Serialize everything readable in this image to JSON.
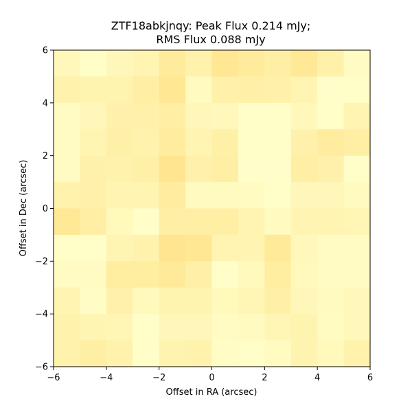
{
  "chart_data": {
    "type": "heatmap",
    "title_lines": [
      "ZTF18abkjnqy: Peak Flux 0.214 mJy;",
      "RMS Flux 0.088 mJy"
    ],
    "xlabel": "Offset in RA (arcsec)",
    "ylabel": "Offset in Dec (arcsec)",
    "xlim": [
      -6,
      6
    ],
    "ylim": [
      -6,
      6
    ],
    "xticks": [
      -6,
      -4,
      -2,
      0,
      2,
      4,
      6
    ],
    "yticks": [
      -6,
      -4,
      -2,
      0,
      2,
      4,
      6
    ],
    "xtick_labels": [
      "−6",
      "−4",
      "−2",
      "0",
      "2",
      "4",
      "6"
    ],
    "ytick_labels": [
      "−6",
      "−4",
      "−2",
      "0",
      "2",
      "4",
      "6"
    ],
    "colormap": [
      "#ffffcc",
      "#ffeda0",
      "#fed976"
    ],
    "grid": false,
    "rows_top_to_bottom": [
      [
        0.2,
        0.05,
        0.22,
        0.3,
        0.55,
        0.35,
        0.65,
        0.55,
        0.45,
        0.62,
        0.4,
        0.1
      ],
      [
        0.35,
        0.32,
        0.32,
        0.45,
        0.65,
        0.15,
        0.4,
        0.42,
        0.4,
        0.3,
        0.02,
        0.05
      ],
      [
        0.1,
        0.22,
        0.38,
        0.4,
        0.47,
        0.22,
        0.2,
        0.05,
        0.05,
        0.2,
        0.05,
        0.3
      ],
      [
        0.1,
        0.28,
        0.42,
        0.35,
        0.52,
        0.3,
        0.42,
        0.05,
        0.05,
        0.38,
        0.52,
        0.45
      ],
      [
        0.1,
        0.38,
        0.35,
        0.42,
        0.7,
        0.38,
        0.45,
        0.02,
        0.02,
        0.45,
        0.38,
        0.05
      ],
      [
        0.35,
        0.4,
        0.3,
        0.3,
        0.52,
        0.15,
        0.15,
        0.12,
        0.05,
        0.22,
        0.22,
        0.15
      ],
      [
        0.62,
        0.45,
        0.18,
        0.05,
        0.45,
        0.45,
        0.45,
        0.3,
        0.15,
        0.3,
        0.3,
        0.25
      ],
      [
        0.05,
        0.05,
        0.28,
        0.35,
        0.7,
        0.65,
        0.3,
        0.3,
        0.58,
        0.2,
        0.1,
        0.1
      ],
      [
        0.1,
        0.1,
        0.5,
        0.5,
        0.58,
        0.42,
        0.05,
        0.18,
        0.5,
        0.18,
        0.1,
        0.1
      ],
      [
        0.3,
        0.08,
        0.38,
        0.18,
        0.32,
        0.32,
        0.18,
        0.25,
        0.42,
        0.22,
        0.15,
        0.2
      ],
      [
        0.35,
        0.28,
        0.25,
        0.05,
        0.22,
        0.22,
        0.1,
        0.15,
        0.25,
        0.32,
        0.12,
        0.2
      ],
      [
        0.35,
        0.45,
        0.35,
        0.05,
        0.32,
        0.35,
        0.08,
        0.05,
        0.12,
        0.32,
        0.18,
        0.35
      ]
    ]
  }
}
